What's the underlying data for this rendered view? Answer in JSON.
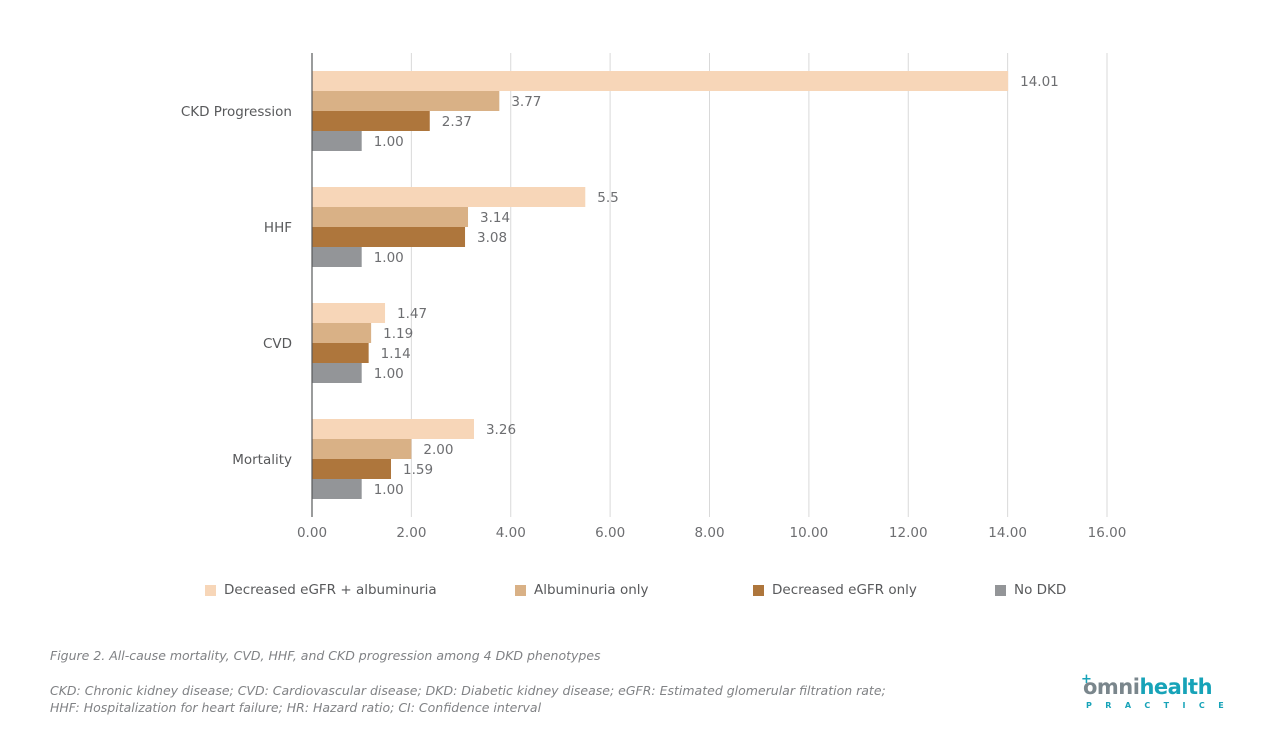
{
  "chart_data": {
    "type": "bar",
    "orientation": "horizontal",
    "title": "",
    "xlabel": "",
    "ylabel": "",
    "xlim": [
      0,
      16
    ],
    "x_ticks": [
      "0.00",
      "2.00",
      "4.00",
      "6.00",
      "8.00",
      "10.00",
      "12.00",
      "14.00",
      "16.00"
    ],
    "x_tick_values": [
      0,
      2,
      4,
      6,
      8,
      10,
      12,
      14,
      16
    ],
    "grid": "vertical",
    "categories": [
      "CKD Progression",
      "HHF",
      "CVD",
      "Mortality"
    ],
    "series": [
      {
        "name": "Decreased eGFR + albuminuria",
        "color": "#F7D6B8",
        "values": [
          14.01,
          5.5,
          1.47,
          3.26
        ],
        "labels": [
          "14.01",
          "5.5",
          "1.47",
          "3.26"
        ]
      },
      {
        "name": "Albuminuria only",
        "color": "#D9B186",
        "values": [
          3.77,
          3.14,
          1.19,
          2.0
        ],
        "labels": [
          "3.77",
          "3.14",
          "1.19",
          "2.00"
        ]
      },
      {
        "name": "Decreased eGFR only",
        "color": "#AE763C",
        "values": [
          2.37,
          3.08,
          1.14,
          1.59
        ],
        "labels": [
          "2.37",
          "3.08",
          "1.14",
          "1.59"
        ]
      },
      {
        "name": "No DKD",
        "color": "#939598",
        "values": [
          1.0,
          1.0,
          1.0,
          1.0
        ],
        "labels": [
          "1.00",
          "1.00",
          "1.00",
          "1.00"
        ]
      }
    ],
    "legend_position": "bottom"
  },
  "caption": "Figure 2. All-cause mortality, CVD, HHF, and CKD progression among 4 DKD phenotypes",
  "notes": [
    "CKD: Chronic kidney disease; CVD: Cardiovascular disease; DKD: Diabetic kidney disease; eGFR: Estimated glomerular filtration rate;",
    "HHF: Hospitalization for heart failure; HR: Hazard ratio; CI: Confidence interval"
  ],
  "logo": {
    "word_part1": "omni",
    "word_part2": "health",
    "plus": "+",
    "subtitle": "PRACTICE"
  }
}
